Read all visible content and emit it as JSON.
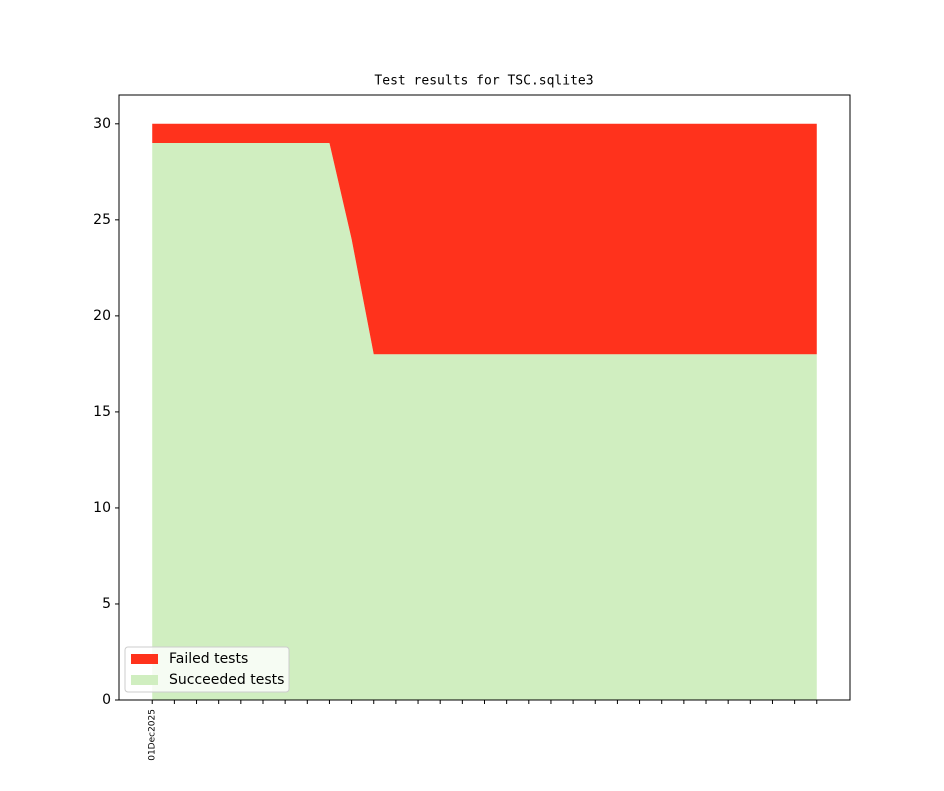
{
  "chart_data": {
    "type": "stacked_area",
    "title": "Test results for TSC.sqlite3",
    "categories": [
      "01Dec2025",
      null,
      null,
      null,
      null,
      null,
      null,
      null,
      null,
      null,
      null,
      null,
      null,
      null,
      null,
      null,
      null,
      null,
      null,
      null,
      null,
      null,
      null,
      null,
      null,
      null,
      null,
      null,
      null,
      null,
      null
    ],
    "series": [
      {
        "name": "Failed tests",
        "color": "#ff321c",
        "values": [
          1,
          1,
          1,
          1,
          1,
          1,
          1,
          1,
          1,
          6,
          12,
          12,
          12,
          12,
          12,
          12,
          12,
          12,
          12,
          12,
          12,
          12,
          12,
          12,
          12,
          12,
          12,
          12,
          12,
          12,
          12
        ]
      },
      {
        "name": "Succeeded tests",
        "color": "#d0eec0",
        "values": [
          29,
          29,
          29,
          29,
          29,
          29,
          29,
          29,
          29,
          24,
          18,
          18,
          18,
          18,
          18,
          18,
          18,
          18,
          18,
          18,
          18,
          18,
          18,
          18,
          18,
          18,
          18,
          18,
          18,
          18,
          18
        ]
      }
    ],
    "ylim": [
      0,
      31.5
    ],
    "yticks": [
      0,
      5,
      10,
      15,
      20,
      25,
      30
    ],
    "legend": "lower left"
  }
}
